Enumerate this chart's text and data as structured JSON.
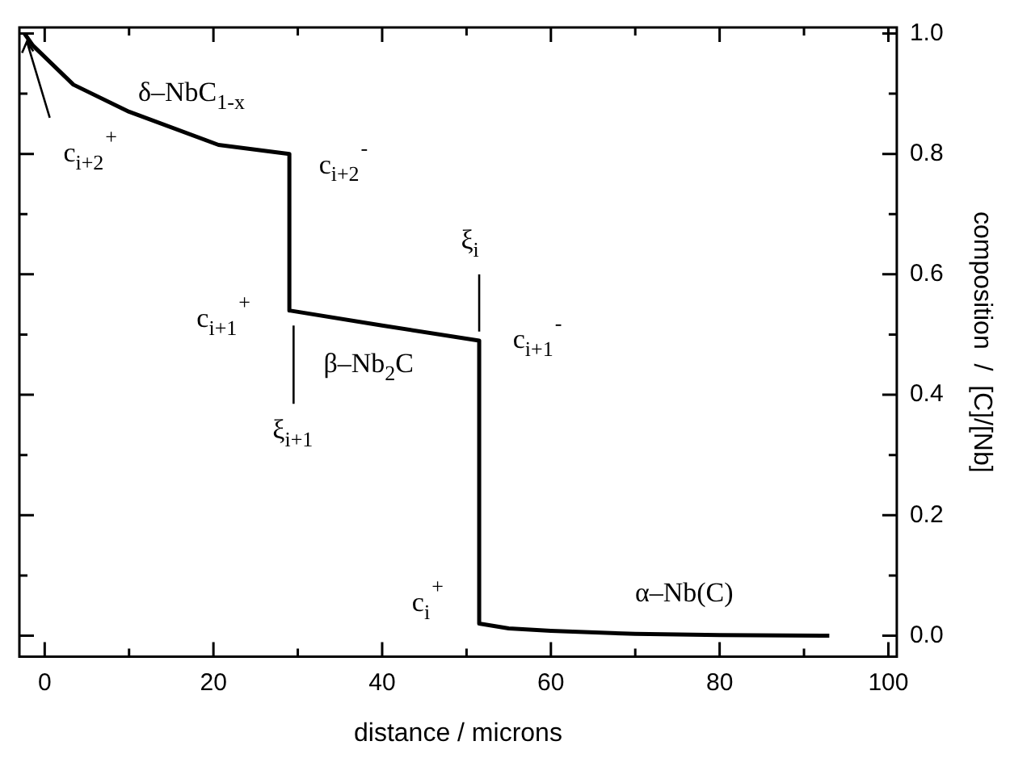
{
  "chart_data": {
    "type": "line",
    "xlabel": "distance / microns",
    "ylabel": "composition  /  [C]/[Nb]",
    "x": [
      -2.4,
      -1.4,
      3.4,
      10,
      20.6,
      29,
      29,
      40,
      51.5,
      51.5,
      55,
      60,
      70,
      80,
      93
    ],
    "series": [
      {
        "color": "#000000",
        "values": [
          1.0,
          0.98,
          0.915,
          0.87,
          0.815,
          0.8,
          0.54,
          0.515,
          0.49,
          0.02,
          0.012,
          0.008,
          0.003,
          0.001,
          0.0
        ]
      }
    ],
    "xlim": [
      -3,
      101
    ],
    "ylim": [
      -0.035,
      1.01
    ],
    "xticks": [
      0,
      {
        "value": 10,
        "label": null
      },
      20,
      {
        "value": 30,
        "label": null
      },
      40,
      {
        "value": 50,
        "label": null
      },
      60,
      {
        "value": 70,
        "label": null
      },
      80,
      {
        "value": 90,
        "label": null
      },
      100
    ],
    "yticks": [
      {
        "value": 0,
        "label": "0.0"
      },
      {
        "value": 0.1,
        "label": null
      },
      0.2,
      {
        "value": 0.3,
        "label": null
      },
      0.4,
      {
        "value": 0.5,
        "label": null
      },
      0.6,
      {
        "value": 0.7,
        "label": null
      },
      0.8,
      {
        "value": 0.9,
        "label": null
      },
      {
        "value": 1,
        "label": "1.0"
      }
    ],
    "grid": false,
    "legend": false,
    "marker": "none",
    "line_style": "solid",
    "annotations": [
      "δ–NbC$_{1-x}$",
      {
        "text": "c$_{i+2}$$^{+}$",
        "x": -2.4,
        "y": 1.0
      },
      "c$_{i+2}$$^{-}$",
      "c$_{i+1}$$^{+}$",
      "β–Nb$_{2}$C",
      "ξ$_{i+1}$",
      "ξ$_{i}$",
      "c$_{i+1}$$^{-}$",
      "c$_{i}$$^{+}$",
      "α–Nb(C)"
    ]
  }
}
